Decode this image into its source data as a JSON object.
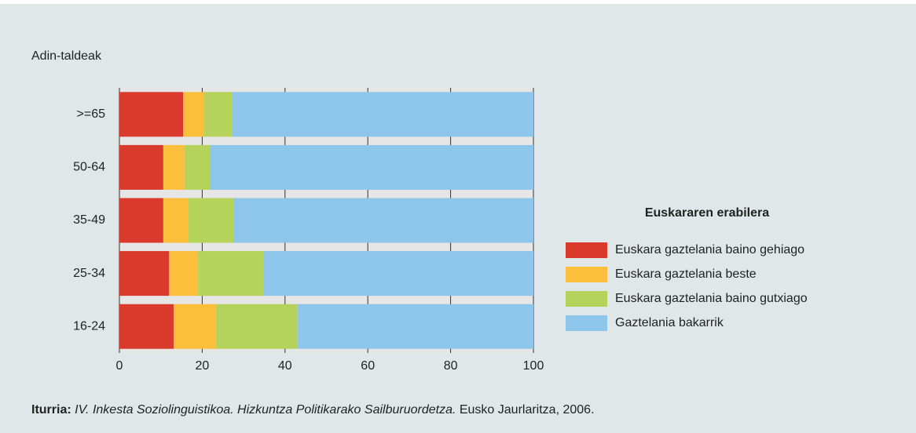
{
  "chart_data": {
    "type": "stacked-barh",
    "y_label": "Adin-taldeak",
    "categories": [
      ">=65",
      "50-64",
      "35-49",
      "25-34",
      "16-24"
    ],
    "series": [
      {
        "name": "Euskara gaztelania baino gehiago",
        "color": "#d93a2b",
        "values": [
          15.4,
          10.6,
          10.6,
          12.0,
          13.1
        ]
      },
      {
        "name": "Euskara gaztelania beste",
        "color": "#fbbf3c",
        "values": [
          5.1,
          5.1,
          6.1,
          7.0,
          10.2
        ]
      },
      {
        "name": "Euskara gaztelania baino gutxiago",
        "color": "#b5d35a",
        "values": [
          6.8,
          6.3,
          11.0,
          15.9,
          19.7
        ]
      },
      {
        "name": "Gaztelania bakarrik",
        "color": "#8ec5ea",
        "values": [
          72.7,
          78.0,
          72.3,
          65.1,
          57.0
        ]
      }
    ],
    "xlim": [
      0,
      100
    ],
    "xticks": [
      0,
      20,
      40,
      60,
      80,
      100
    ],
    "grid": true,
    "legend_title": "Euskararen erabilera",
    "source": {
      "label": "Iturria:",
      "title": "IV. Inkesta Soziolinguistikoa. Hizkuntza Politikarako Sailburuordetza.",
      "publisher": "Eusko Jaurlaritza, 2006."
    }
  }
}
